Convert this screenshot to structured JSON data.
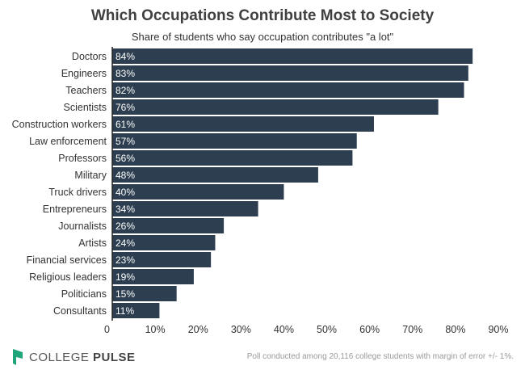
{
  "title": "Which Occupations Contribute Most to Society",
  "subtitle": "Share of students who say occupation contributes \"a lot\"",
  "footer": {
    "brand_light": "COLLEGE ",
    "brand_bold": "PULSE",
    "note": "Poll conducted among 20,116 college students with margin of error +/- 1%."
  },
  "colors": {
    "bar": "#2c3e50",
    "label": "#ffffff",
    "axis": "#333333",
    "logo": "#1fa57a"
  },
  "chart_data": {
    "type": "bar",
    "orientation": "horizontal",
    "categories": [
      "Doctors",
      "Engineers",
      "Teachers",
      "Scientists",
      "Construction workers",
      "Law enforcement",
      "Professors",
      "Military",
      "Truck drivers",
      "Entrepreneurs",
      "Journalists",
      "Artists",
      "Financial services",
      "Religious leaders",
      "Politicians",
      "Consultants"
    ],
    "values": [
      84,
      83,
      82,
      76,
      61,
      57,
      56,
      48,
      40,
      34,
      26,
      24,
      23,
      19,
      15,
      11
    ],
    "value_labels": [
      "84%",
      "83%",
      "82%",
      "76%",
      "61%",
      "57%",
      "56%",
      "48%",
      "40%",
      "34%",
      "26%",
      "24%",
      "23%",
      "19%",
      "15%",
      "11%"
    ],
    "xlim": [
      0,
      90
    ],
    "ticks": [
      0,
      10,
      20,
      30,
      40,
      50,
      60,
      70,
      80,
      90
    ],
    "tick_labels": [
      "0",
      "10%",
      "20%",
      "30%",
      "40%",
      "50%",
      "60%",
      "70%",
      "80%",
      "90%"
    ],
    "grid": false
  }
}
